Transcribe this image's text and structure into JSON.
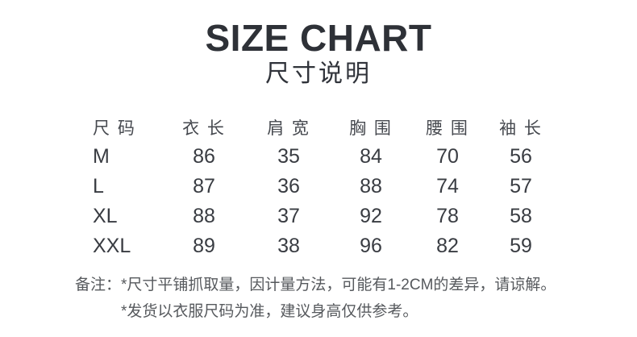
{
  "header": {
    "title": "SIZE CHART",
    "subtitle": "尺寸说明"
  },
  "table": {
    "columns": [
      "尺 码",
      "衣 长",
      "肩 宽",
      "胸 围",
      "腰 围",
      "袖 长"
    ],
    "rows": [
      {
        "size": "M",
        "values": [
          86,
          35,
          84,
          70,
          56
        ]
      },
      {
        "size": "L",
        "values": [
          87,
          36,
          88,
          74,
          57
        ]
      },
      {
        "size": "XL",
        "values": [
          88,
          37,
          92,
          78,
          58
        ]
      },
      {
        "size": "XXL",
        "values": [
          89,
          38,
          96,
          82,
          59
        ]
      }
    ]
  },
  "notes": {
    "label": "备注：",
    "line1": "*尺寸平铺抓取量，因计量方法，可能有1-2CM的差异，请谅解。",
    "line2": "*发货以衣服尺码为准，建议身高仅供参考。"
  },
  "colors": {
    "background": "#ffffff",
    "title_text": "#2e3137",
    "header_text": "#46494f",
    "data_text": "#393c42",
    "note_text": "#56595d"
  }
}
